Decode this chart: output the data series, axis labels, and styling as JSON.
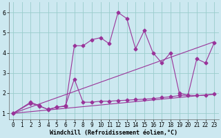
{
  "xlabel": "Windchill (Refroidissement éolien,°C)",
  "background_color": "#cce8f0",
  "grid_color": "#99cccc",
  "line_color": "#993399",
  "xlim": [
    -0.5,
    23.5
  ],
  "ylim": [
    0.7,
    6.5
  ],
  "xticks": [
    0,
    1,
    2,
    3,
    4,
    5,
    6,
    7,
    8,
    9,
    10,
    11,
    12,
    13,
    14,
    15,
    16,
    17,
    18,
    19,
    20,
    21,
    22,
    23
  ],
  "yticks": [
    1,
    2,
    3,
    4,
    5,
    6
  ],
  "series1_x": [
    0,
    2,
    3,
    4,
    5,
    6,
    7,
    8,
    9,
    10,
    11,
    12,
    13,
    14,
    15,
    16,
    17,
    18,
    19,
    20,
    21,
    22,
    23
  ],
  "series1_y": [
    1.0,
    1.5,
    1.35,
    1.2,
    1.3,
    1.35,
    4.35,
    4.35,
    4.65,
    4.75,
    4.45,
    6.0,
    5.7,
    4.2,
    5.1,
    4.0,
    3.5,
    4.0,
    2.0,
    1.9,
    3.7,
    3.5,
    4.5
  ],
  "series2_x": [
    0,
    2,
    3,
    4,
    5,
    6,
    7,
    8,
    9,
    10,
    11,
    12,
    13,
    14,
    15,
    16,
    17,
    18,
    19,
    20,
    21,
    22,
    23
  ],
  "series2_y": [
    1.0,
    1.55,
    1.38,
    1.18,
    1.3,
    1.38,
    2.7,
    1.55,
    1.55,
    1.6,
    1.6,
    1.63,
    1.65,
    1.68,
    1.7,
    1.73,
    1.78,
    1.82,
    1.88,
    1.9,
    1.88,
    1.9,
    1.95
  ],
  "line1_x": [
    0,
    23
  ],
  "line1_y": [
    1.0,
    4.55
  ],
  "line2_x": [
    0,
    23
  ],
  "line2_y": [
    1.0,
    1.95
  ],
  "markersize": 2.5,
  "linewidth": 0.8,
  "xlabel_fontsize": 6,
  "tick_fontsize": 5.5
}
